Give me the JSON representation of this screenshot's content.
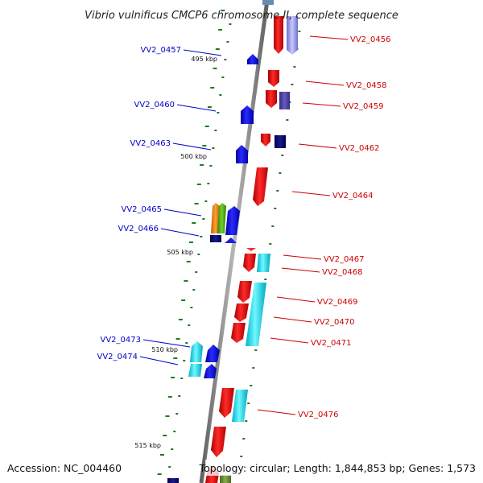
{
  "title": "Vibrio vulnificus CMCP6 chromosome II, complete sequence",
  "accession": "Accession: NC_004460",
  "topology": "Topology: circular; Length: 1,844,853 bp; Genes: 1,573",
  "colors": {
    "forward_label": "#cc0000",
    "reverse_label": "#0000cc",
    "backbone": "#8a8a8a",
    "gc_dots": "#1f7a1f"
  },
  "ticks": [
    "495 kbp",
    "500 kbp",
    "505 kbp",
    "510 kbp",
    "515 kbp"
  ],
  "forward_genes": [
    "VV2_0456",
    "VV2_0458",
    "VV2_0459",
    "VV2_0462",
    "VV2_0464",
    "VV2_0467",
    "VV2_0468",
    "VV2_0469",
    "VV2_0470",
    "VV2_0471",
    "VV2_0476"
  ],
  "reverse_genes": [
    "VV2_0457",
    "VV2_0460",
    "VV2_0463",
    "VV2_0465",
    "VV2_0466",
    "VV2_0473",
    "VV2_0474"
  ]
}
